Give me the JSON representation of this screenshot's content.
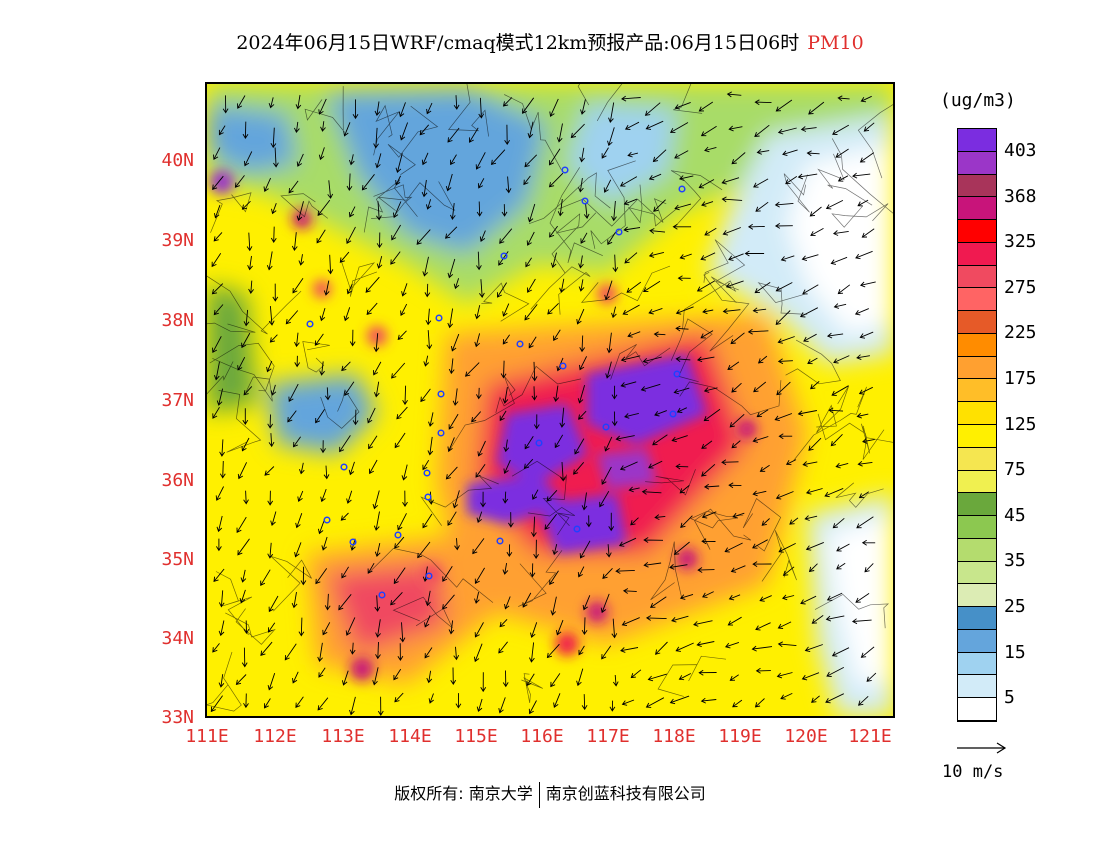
{
  "title": {
    "main": "2024年06月15日WRF/cmaq模式12km预报产品:06月15日06时",
    "species": "PM10",
    "species_color": "#e0302e"
  },
  "map": {
    "latitude_labels": [
      "40N",
      "39N",
      "38N",
      "37N",
      "36N",
      "35N",
      "34N",
      "33N"
    ],
    "longitude_labels": [
      "111E",
      "112E",
      "113E",
      "114E",
      "115E",
      "116E",
      "117E",
      "118E",
      "119E",
      "120E",
      "121E"
    ],
    "lon_range": [
      111,
      121.4
    ],
    "lat_range": [
      33,
      41
    ],
    "label_color": "#e0302e",
    "field": "PM10 concentration with wind vectors"
  },
  "colorbar": {
    "unit": "(ug/m3)",
    "labels": [
      "403",
      "368",
      "325",
      "275",
      "225",
      "175",
      "125",
      "75",
      "45",
      "35",
      "25",
      "15",
      "5"
    ],
    "colors": [
      "#7b2de0",
      "#9b36c8",
      "#a8345a",
      "#c8147a",
      "#ff0000",
      "#f01a50",
      "#f04a60",
      "#ff6464",
      "#e65a28",
      "#ff8c00",
      "#ffa030",
      "#ffbe28",
      "#ffe100",
      "#fff000",
      "#f5e650",
      "#f0f050",
      "#6aa83c",
      "#8cc850",
      "#b4dc6e",
      "#c8e68c",
      "#dcecb4",
      "#4690c8",
      "#64a5dc",
      "#9fd2f0",
      "#d2ebf8",
      "#ffffff"
    ]
  },
  "wind_reference": {
    "label": "10 m/s"
  },
  "footer": {
    "copyright": "版权所有: 南京大学",
    "company": "南京创蓝科技有限公司"
  }
}
